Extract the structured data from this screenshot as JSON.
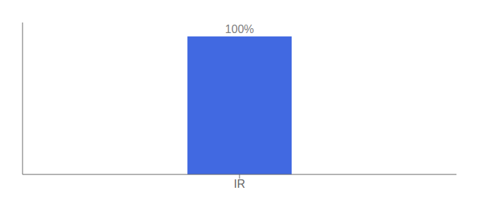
{
  "chart_data": {
    "type": "bar",
    "categories": [
      "IR"
    ],
    "values": [
      100
    ],
    "value_labels": [
      "100%"
    ],
    "color": "#4169E1",
    "ylim": [
      0,
      110
    ],
    "data_labels": true,
    "tick_labels": "x",
    "grid": false
  }
}
